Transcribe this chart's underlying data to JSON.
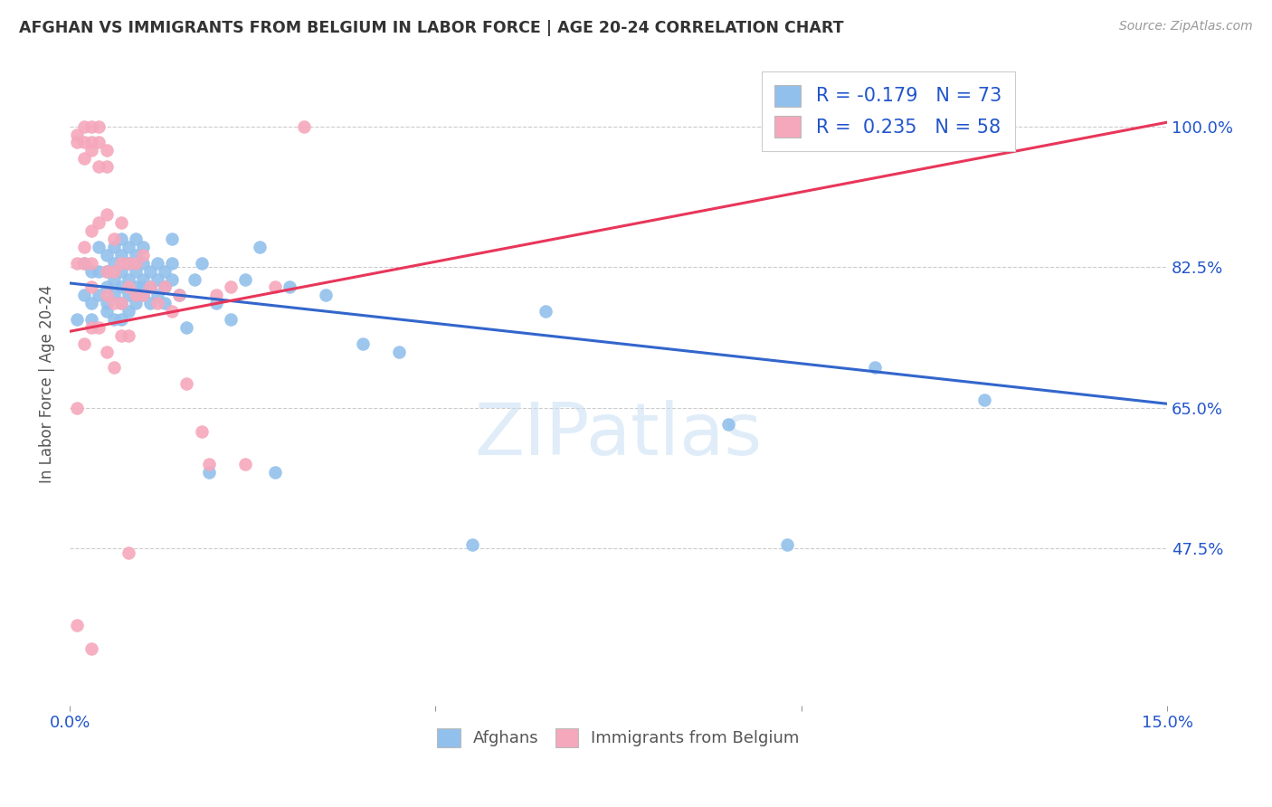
{
  "title": "AFGHAN VS IMMIGRANTS FROM BELGIUM IN LABOR FORCE | AGE 20-24 CORRELATION CHART",
  "source": "Source: ZipAtlas.com",
  "ylabel": "In Labor Force | Age 20-24",
  "xlim": [
    0.0,
    0.15
  ],
  "ylim": [
    0.28,
    1.08
  ],
  "xtick_positions": [
    0.0,
    0.05,
    0.1,
    0.15
  ],
  "xticklabels": [
    "0.0%",
    "",
    "",
    "15.0%"
  ],
  "ytick_positions": [
    0.475,
    0.65,
    0.825,
    1.0
  ],
  "yticklabels": [
    "47.5%",
    "65.0%",
    "82.5%",
    "100.0%"
  ],
  "blue_color": "#92C0EC",
  "pink_color": "#F5A8BC",
  "blue_line_color": "#3366CC",
  "pink_line_color": "#E8365A",
  "R_blue": -0.179,
  "N_blue": 73,
  "R_pink": 0.235,
  "N_pink": 58,
  "legend_color": "#2255CC",
  "blue_line_y0": 0.805,
  "blue_line_y1": 0.655,
  "pink_line_y0": 0.745,
  "pink_line_y1": 1.005,
  "blue_points_x": [
    0.001,
    0.002,
    0.002,
    0.003,
    0.003,
    0.004,
    0.004,
    0.004,
    0.005,
    0.005,
    0.005,
    0.005,
    0.006,
    0.006,
    0.006,
    0.006,
    0.006,
    0.007,
    0.007,
    0.007,
    0.007,
    0.007,
    0.008,
    0.008,
    0.008,
    0.008,
    0.008,
    0.009,
    0.009,
    0.009,
    0.009,
    0.009,
    0.01,
    0.01,
    0.01,
    0.01,
    0.011,
    0.011,
    0.011,
    0.012,
    0.012,
    0.012,
    0.013,
    0.013,
    0.014,
    0.014,
    0.014,
    0.015,
    0.016,
    0.017,
    0.018,
    0.019,
    0.02,
    0.022,
    0.024,
    0.026,
    0.028,
    0.03,
    0.035,
    0.04,
    0.045,
    0.055,
    0.065,
    0.09,
    0.098,
    0.11,
    0.125,
    0.003,
    0.005,
    0.007,
    0.009,
    0.01,
    0.013
  ],
  "blue_points_y": [
    0.76,
    0.79,
    0.83,
    0.78,
    0.82,
    0.79,
    0.82,
    0.85,
    0.77,
    0.8,
    0.82,
    0.84,
    0.76,
    0.79,
    0.81,
    0.83,
    0.85,
    0.78,
    0.8,
    0.82,
    0.84,
    0.86,
    0.77,
    0.79,
    0.81,
    0.83,
    0.85,
    0.78,
    0.8,
    0.82,
    0.84,
    0.86,
    0.79,
    0.81,
    0.83,
    0.85,
    0.78,
    0.8,
    0.82,
    0.79,
    0.81,
    0.83,
    0.8,
    0.82,
    0.81,
    0.83,
    0.86,
    0.79,
    0.75,
    0.81,
    0.83,
    0.57,
    0.78,
    0.76,
    0.81,
    0.85,
    0.57,
    0.8,
    0.79,
    0.73,
    0.72,
    0.48,
    0.77,
    0.63,
    0.48,
    0.7,
    0.66,
    0.76,
    0.78,
    0.76,
    0.79,
    0.8,
    0.78
  ],
  "pink_points_x": [
    0.001,
    0.001,
    0.001,
    0.002,
    0.002,
    0.002,
    0.002,
    0.002,
    0.003,
    0.003,
    0.003,
    0.003,
    0.003,
    0.003,
    0.004,
    0.004,
    0.004,
    0.004,
    0.005,
    0.005,
    0.005,
    0.005,
    0.005,
    0.006,
    0.006,
    0.006,
    0.007,
    0.007,
    0.007,
    0.008,
    0.008,
    0.009,
    0.009,
    0.01,
    0.01,
    0.011,
    0.012,
    0.013,
    0.014,
    0.015,
    0.016,
    0.018,
    0.019,
    0.02,
    0.022,
    0.024,
    0.028,
    0.032,
    0.001,
    0.002,
    0.003,
    0.004,
    0.005,
    0.006,
    0.007,
    0.008,
    0.001,
    0.003,
    0.008
  ],
  "pink_points_y": [
    0.83,
    0.98,
    0.99,
    0.83,
    0.85,
    0.96,
    0.98,
    1.0,
    0.8,
    0.83,
    0.87,
    0.97,
    0.98,
    1.0,
    0.88,
    0.95,
    0.98,
    1.0,
    0.79,
    0.82,
    0.89,
    0.95,
    0.97,
    0.78,
    0.82,
    0.86,
    0.78,
    0.83,
    0.88,
    0.8,
    0.83,
    0.79,
    0.83,
    0.79,
    0.84,
    0.8,
    0.78,
    0.8,
    0.77,
    0.79,
    0.68,
    0.62,
    0.58,
    0.79,
    0.8,
    0.58,
    0.8,
    1.0,
    0.65,
    0.73,
    0.75,
    0.75,
    0.72,
    0.7,
    0.74,
    0.74,
    0.38,
    0.35,
    0.47
  ]
}
